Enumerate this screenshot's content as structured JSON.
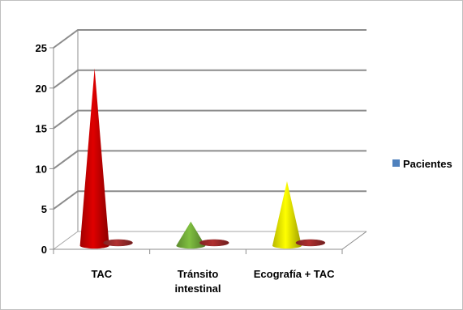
{
  "chart_data": {
    "type": "bar",
    "style": "3d-cone",
    "categories": [
      "TAC",
      "Tránsito\nintestinal",
      "Ecografía  + TAC"
    ],
    "series": [
      {
        "name": "Pacientes",
        "values": [
          22,
          3,
          8
        ],
        "colors": [
          "#e00000",
          "#80c040",
          "#ffff00"
        ]
      },
      {
        "name": "",
        "values": [
          0.4,
          0.4,
          0.4
        ],
        "colors": [
          "#b03030",
          "#b03030",
          "#b03030"
        ]
      }
    ],
    "ylim": [
      0,
      25
    ],
    "yticks": [
      "0",
      "5",
      "10",
      "15",
      "20",
      "25"
    ],
    "grid": true,
    "legend": {
      "position": "right",
      "label": "Pacientes",
      "color": "#4f81bd"
    }
  }
}
